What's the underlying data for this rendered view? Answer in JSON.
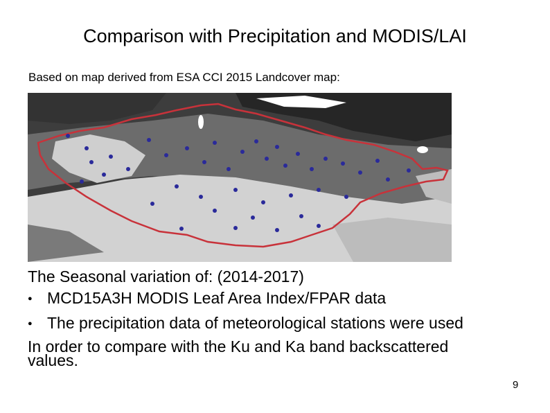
{
  "slide": {
    "title": "Comparison with Precipitation and MODIS/LAI",
    "subtitle": "Based on map derived from ESA CCI 2015 Landcover map:",
    "intro": "The Seasonal variation of: (2014-2017)",
    "bullets": [
      "MCD15A3H MODIS Leaf Area Index/FPAR data",
      "The precipitation data of meteorological stations were used"
    ],
    "closing_line1": "In order to compare with the Ku and Ka band backscattered",
    "closing_line2": "values.",
    "page_number": "9"
  },
  "map": {
    "colors": {
      "forest": "#2c2c2c",
      "grassland": "#6a6a6a",
      "steppe": "#8c8c8c",
      "desert": "#d0d0d0",
      "border": "#c8323a",
      "station": "#2a2a9a",
      "water": "#ffffff"
    }
  }
}
